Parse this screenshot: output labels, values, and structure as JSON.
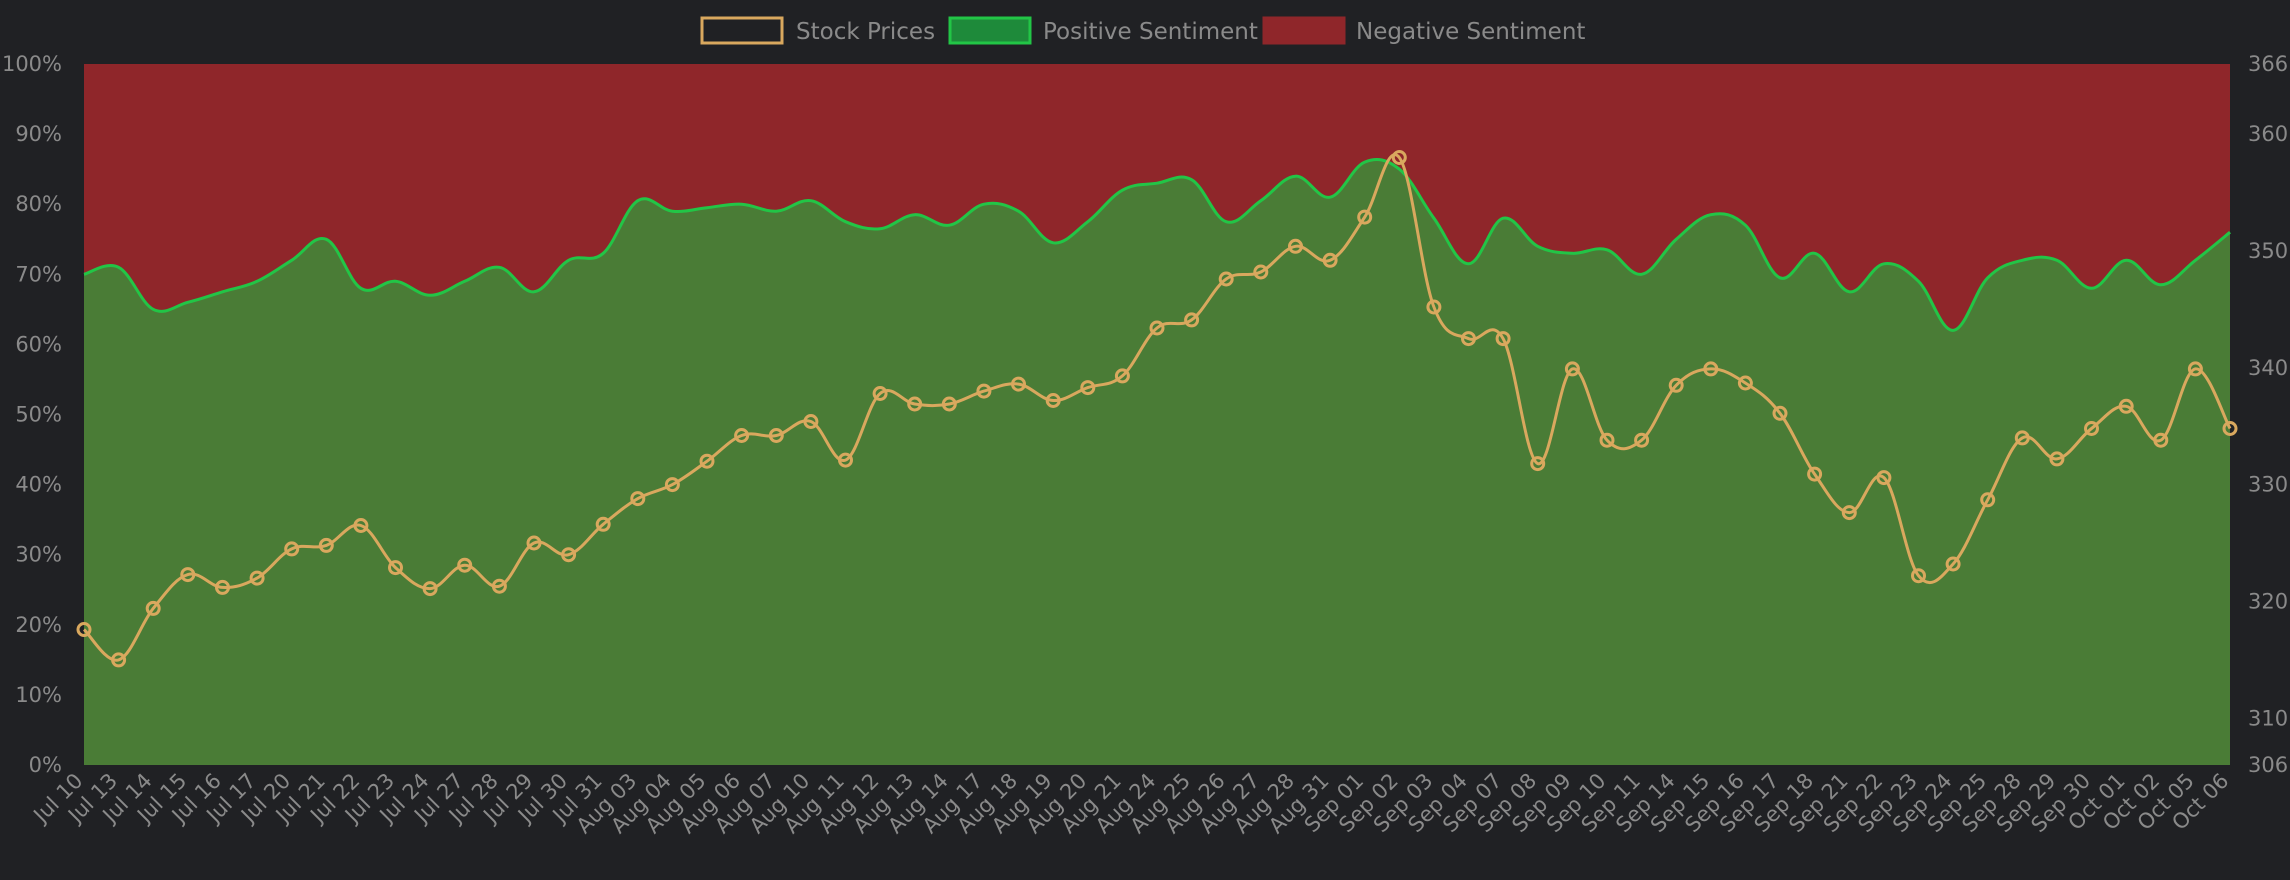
{
  "chart_data": {
    "type": "line",
    "legend_position": "top-center",
    "grid": false,
    "categories": [
      "Jul 10",
      "Jul 13",
      "Jul 14",
      "Jul 15",
      "Jul 16",
      "Jul 17",
      "Jul 20",
      "Jul 21",
      "Jul 22",
      "Jul 23",
      "Jul 24",
      "Jul 27",
      "Jul 28",
      "Jul 29",
      "Jul 30",
      "Jul 31",
      "Aug 03",
      "Aug 04",
      "Aug 05",
      "Aug 06",
      "Aug 07",
      "Aug 10",
      "Aug 11",
      "Aug 12",
      "Aug 13",
      "Aug 14",
      "Aug 17",
      "Aug 18",
      "Aug 19",
      "Aug 20",
      "Aug 21",
      "Aug 24",
      "Aug 25",
      "Aug 26",
      "Aug 27",
      "Aug 28",
      "Aug 31",
      "Sep 01",
      "Sep 02",
      "Sep 03",
      "Sep 04",
      "Sep 07",
      "Sep 08",
      "Sep 09",
      "Sep 10",
      "Sep 11",
      "Sep 14",
      "Sep 15",
      "Sep 16",
      "Sep 17",
      "Sep 18",
      "Sep 21",
      "Sep 22",
      "Sep 23",
      "Sep 24",
      "Sep 25",
      "Sep 28",
      "Sep 29",
      "Sep 30",
      "Oct 01",
      "Oct 02",
      "Oct 05",
      "Oct 06"
    ],
    "y_left": {
      "ticks": [
        "0%",
        "10%",
        "20%",
        "30%",
        "40%",
        "50%",
        "60%",
        "70%",
        "80%",
        "90%",
        "100%"
      ],
      "range": [
        0,
        100
      ]
    },
    "y_right": {
      "ticks": [
        "306",
        "310",
        "320",
        "330",
        "340",
        "350",
        "360",
        "366"
      ],
      "range": [
        306,
        366
      ]
    },
    "series": [
      {
        "name": "Stock Prices",
        "axis": "right",
        "color": "#d9a85e",
        "values": [
          317.6,
          315.0,
          319.4,
          322.3,
          321.2,
          322.0,
          324.5,
          324.8,
          326.5,
          322.9,
          321.1,
          323.1,
          321.3,
          325.0,
          324.0,
          326.6,
          328.8,
          330.0,
          332.0,
          334.2,
          334.2,
          335.4,
          332.1,
          337.8,
          336.9,
          336.9,
          338.0,
          338.6,
          337.2,
          338.3,
          339.3,
          343.4,
          344.1,
          347.6,
          348.2,
          350.4,
          349.2,
          352.9,
          358.0,
          345.2,
          342.5,
          342.5,
          331.8,
          339.9,
          333.8,
          333.8,
          338.5,
          339.9,
          338.7,
          336.1,
          330.9,
          327.6,
          330.6,
          322.2,
          323.2,
          328.7,
          334.0,
          332.2,
          334.8,
          336.7,
          333.8,
          339.9,
          334.8
        ]
      },
      {
        "name": "Positive Sentiment",
        "axis": "left",
        "color": "#22c546",
        "fill": "#4a7c36",
        "values": [
          70,
          71,
          65,
          66,
          67.5,
          69,
          72,
          75,
          68,
          69,
          67,
          69,
          71,
          67.5,
          72,
          73,
          80.5,
          79,
          79.5,
          80,
          79,
          80.5,
          77.5,
          76.5,
          78.5,
          77,
          80,
          79,
          74.5,
          77.5,
          82,
          83,
          83.5,
          77.5,
          80.5,
          84,
          81,
          86,
          85,
          78,
          71.5,
          78,
          74,
          73,
          73.5,
          70,
          75,
          78.5,
          77,
          69.5,
          73,
          67.5,
          71.5,
          69,
          62,
          69.5,
          72,
          72,
          68,
          72,
          68.5,
          72,
          76
        ]
      },
      {
        "name": "Negative Sentiment",
        "axis": "left",
        "color": "#8f262a",
        "fill": "#8f262a",
        "values": [
          30,
          29,
          35,
          34,
          32.5,
          31,
          28,
          25,
          32,
          31,
          33,
          31,
          29,
          32.5,
          28,
          27,
          19.5,
          21,
          20.5,
          20,
          21,
          19.5,
          22.5,
          23.5,
          21.5,
          23,
          20,
          21,
          25.5,
          22.5,
          18,
          17,
          16.5,
          22.5,
          19.5,
          16,
          19,
          14,
          15,
          22,
          28.5,
          22,
          26,
          27,
          26.5,
          30,
          25,
          21.5,
          23,
          30.5,
          27,
          32.5,
          28.5,
          31,
          38,
          30.5,
          28,
          28,
          32,
          28,
          31.5,
          28,
          24
        ]
      }
    ]
  }
}
